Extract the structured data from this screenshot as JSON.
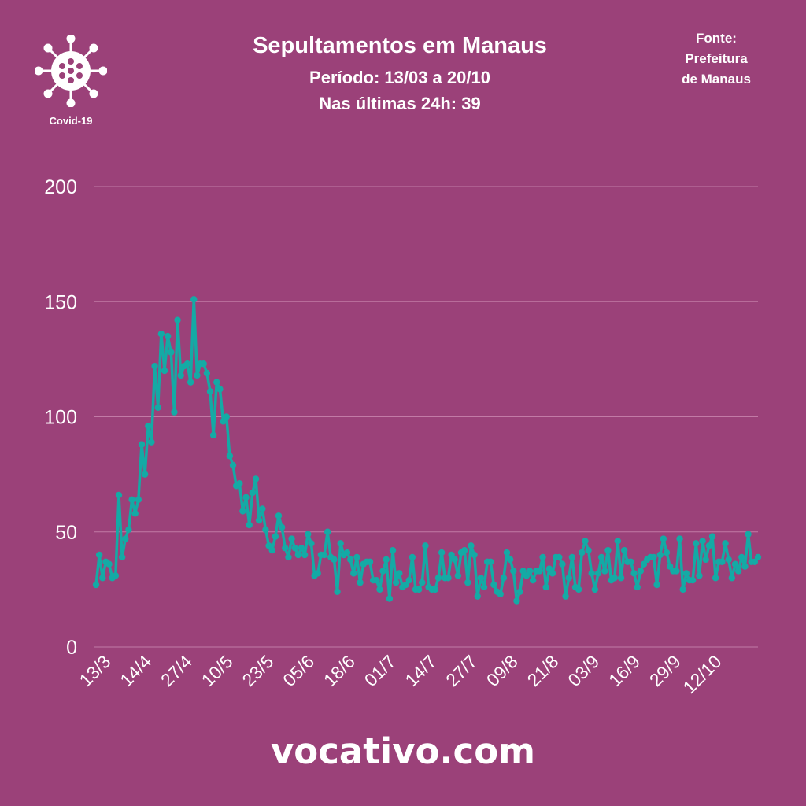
{
  "header": {
    "title": "Sepultamentos em Manaus",
    "period": "Período: 13/03 a 20/10",
    "last24": "Nas últimas 24h: 39",
    "source_lines": [
      "Fonte:",
      "Prefeitura",
      "de Manaus"
    ],
    "logo_label": "Covid-19"
  },
  "footer": {
    "brand": "vocativo.com"
  },
  "colors": {
    "background": "#9b4179",
    "line": "#14aaa5",
    "grid": "#c27aa6"
  },
  "chart_data": {
    "type": "line",
    "title": "Sepultamentos em Manaus",
    "xlabel": "",
    "ylabel": "",
    "ylim": [
      0,
      200
    ],
    "yticks": [
      0,
      50,
      100,
      150,
      200
    ],
    "xtick_labels": [
      "13/3",
      "14/4",
      "27/4",
      "10/5",
      "23/5",
      "05/6",
      "18/6",
      "01/7",
      "14/7",
      "27/7",
      "09/8",
      "21/8",
      "03/9",
      "16/9",
      "29/9",
      "12/10"
    ],
    "grid": true,
    "series": [
      {
        "name": "Sepultamentos",
        "values": [
          27,
          40,
          30,
          37,
          36,
          30,
          31,
          66,
          39,
          47,
          51,
          64,
          58,
          64,
          88,
          75,
          96,
          89,
          122,
          104,
          136,
          120,
          135,
          128,
          102,
          142,
          118,
          122,
          123,
          115,
          151,
          118,
          123,
          123,
          119,
          111,
          92,
          115,
          112,
          98,
          100,
          83,
          79,
          70,
          71,
          59,
          65,
          53,
          67,
          73,
          55,
          60,
          51,
          44,
          42,
          48,
          57,
          52,
          43,
          39,
          47,
          43,
          40,
          43,
          40,
          49,
          45,
          31,
          32,
          40,
          40,
          50,
          39,
          38,
          24,
          45,
          40,
          41,
          38,
          32,
          39,
          28,
          36,
          37,
          37,
          29,
          29,
          25,
          33,
          38,
          21,
          42,
          28,
          32,
          26,
          27,
          29,
          39,
          25,
          25,
          28,
          44,
          26,
          25,
          25,
          30,
          41,
          30,
          30,
          40,
          38,
          31,
          41,
          42,
          28,
          44,
          40,
          22,
          30,
          26,
          37,
          37,
          27,
          24,
          23,
          30,
          41,
          38,
          33,
          20,
          24,
          33,
          31,
          33,
          29,
          33,
          33,
          39,
          26,
          34,
          32,
          39,
          39,
          36,
          22,
          30,
          39,
          26,
          25,
          41,
          46,
          42,
          32,
          25,
          32,
          39,
          33,
          42,
          29,
          30,
          46,
          30,
          42,
          37,
          37,
          32,
          26,
          33,
          36,
          38,
          39,
          39,
          27,
          40,
          47,
          41,
          35,
          33,
          33,
          47,
          25,
          32,
          29,
          29,
          45,
          31,
          46,
          38,
          44,
          48,
          30,
          37,
          37,
          45,
          38,
          30,
          36,
          33,
          39,
          35,
          49,
          37,
          37,
          39
        ]
      }
    ]
  }
}
